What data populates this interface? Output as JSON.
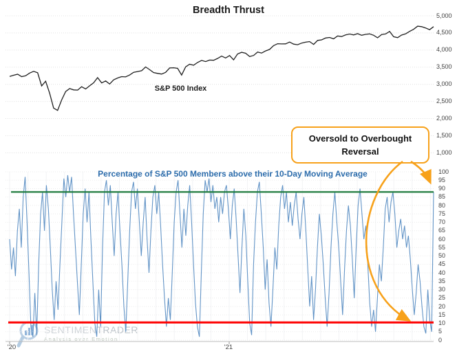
{
  "title": "Breadth Thrust",
  "annotation": {
    "line1": "Oversold to Overbought",
    "line2": "Reversal"
  },
  "watermark": {
    "brand_light": "SENTIMEN",
    "brand_dark": "TRADER",
    "tagline": "Analysis over Emotion"
  },
  "colors": {
    "spx_line": "#1f1f1f",
    "breadth_line": "#6193c6",
    "breadth_label_blue": "#2c6cab",
    "overbought_green": "#1d7a3b",
    "oversold_red": "#fe0000",
    "annotation_orange": "#f7a11a",
    "gridline": "#e0e0e0",
    "axis": "#bdbdbd"
  },
  "chart_data": [
    {
      "type": "line",
      "title": "Breadth Thrust",
      "label": "S&P 500 Index",
      "x_ticks": [
        "'20",
        "'21"
      ],
      "x_range_note": "Jan 2020 through late 2021",
      "ylim": [
        1000,
        5000
      ],
      "grid": "horizontal-dotted",
      "legend_position": "none",
      "y_ticks": [
        {
          "v": 5000,
          "t": "5,000"
        },
        {
          "v": 4500,
          "t": "4,500"
        },
        {
          "v": 4000,
          "t": "4,000"
        },
        {
          "v": 3500,
          "t": "3,500"
        },
        {
          "v": 3000,
          "t": "3,000"
        },
        {
          "v": 2500,
          "t": "2,500"
        },
        {
          "v": 2000,
          "t": "2,000"
        },
        {
          "v": 1500,
          "t": "1,500"
        },
        {
          "v": 1000,
          "t": "1,000"
        }
      ],
      "series": [
        {
          "name": "S&P 500 Index",
          "values": [
            3230,
            3265,
            3295,
            3225,
            3248,
            3328,
            3380,
            3338,
            2954,
            3090,
            2741,
            2305,
            2237,
            2541,
            2790,
            2875,
            2837,
            2831,
            2930,
            2864,
            2955,
            3044,
            3194,
            3041,
            3098,
            3009,
            3130,
            3185,
            3225,
            3216,
            3271,
            3351,
            3373,
            3397,
            3508,
            3427,
            3341,
            3319,
            3298,
            3349,
            3477,
            3484,
            3465,
            3270,
            3509,
            3585,
            3558,
            3638,
            3699,
            3663,
            3709,
            3703,
            3756,
            3825,
            3768,
            3841,
            3714,
            3887,
            3935,
            3906,
            3811,
            3842,
            3943,
            3913,
            3975,
            4020,
            4129,
            4185,
            4180,
            4181,
            4233,
            4174,
            4156,
            4204,
            4230,
            4247,
            4166,
            4281,
            4298,
            4352,
            4369,
            4327,
            4412,
            4395,
            4442,
            4468,
            4442,
            4479,
            4433,
            4458,
            4473,
            4433,
            4358,
            4455,
            4471,
            4545,
            4391,
            4363,
            4438,
            4472,
            4545,
            4605,
            4698,
            4683,
            4645,
            4595,
            4683
          ]
        }
      ]
    },
    {
      "type": "line",
      "title": "Percentage of S&P 500 Members above their 10-Day Moving Average",
      "ylim": [
        0,
        100
      ],
      "y_tick_step": 5,
      "grid": "horizontal-dotted",
      "legend_position": "none",
      "hlines": [
        {
          "name": "overbought threshold",
          "value": 88,
          "color": "#1d7a3b"
        },
        {
          "name": "oversold threshold",
          "value": 10.5,
          "color": "#fe0000"
        }
      ],
      "annotation_meaning": "Arrows mark the reversal from oversold (~5%) to overbought (~88%) at the right edge",
      "series": [
        {
          "name": "% of members above 10-day MA",
          "values": [
            60,
            42,
            55,
            38,
            65,
            78,
            55,
            85,
            97,
            70,
            40,
            8,
            2,
            28,
            3,
            45,
            75,
            88,
            65,
            92,
            78,
            55,
            30,
            12,
            35,
            18,
            45,
            70,
            96,
            85,
            98,
            88,
            97,
            75,
            55,
            35,
            15,
            45,
            75,
            90,
            70,
            88,
            60,
            35,
            10,
            2,
            30,
            8,
            55,
            88,
            95,
            80,
            92,
            70,
            50,
            75,
            88,
            65,
            45,
            20,
            5,
            35,
            65,
            88,
            94,
            78,
            90,
            70,
            50,
            70,
            85,
            60,
            40,
            65,
            85,
            92,
            75,
            88,
            68,
            45,
            25,
            8,
            25,
            12,
            40,
            70,
            88,
            95,
            75,
            55,
            78,
            62,
            80,
            92,
            70,
            45,
            22,
            8,
            2,
            40,
            75,
            95,
            88,
            96,
            82,
            92,
            78,
            85,
            70,
            85,
            75,
            88,
            92,
            78,
            60,
            80,
            90,
            72,
            50,
            28,
            55,
            78,
            62,
            35,
            10,
            3,
            45,
            70,
            88,
            94,
            75,
            55,
            30,
            48,
            22,
            8,
            30,
            55,
            42,
            68,
            85,
            92,
            78,
            88,
            70,
            82,
            68,
            80,
            88,
            72,
            60,
            75,
            85,
            65,
            42,
            20,
            38,
            12,
            30,
            55,
            75,
            62,
            45,
            25,
            8,
            28,
            55,
            75,
            88,
            70,
            55,
            35,
            15,
            42,
            65,
            80,
            68,
            48,
            25,
            55,
            80,
            90,
            75,
            60,
            68,
            45,
            22,
            8,
            18,
            5,
            25,
            45,
            35,
            55,
            78,
            85,
            70,
            82,
            88,
            75,
            55,
            65,
            72,
            60,
            68,
            55,
            62,
            48,
            30,
            15,
            28,
            45,
            35,
            20,
            8,
            4,
            30,
            12,
            5,
            88
          ]
        }
      ]
    }
  ]
}
